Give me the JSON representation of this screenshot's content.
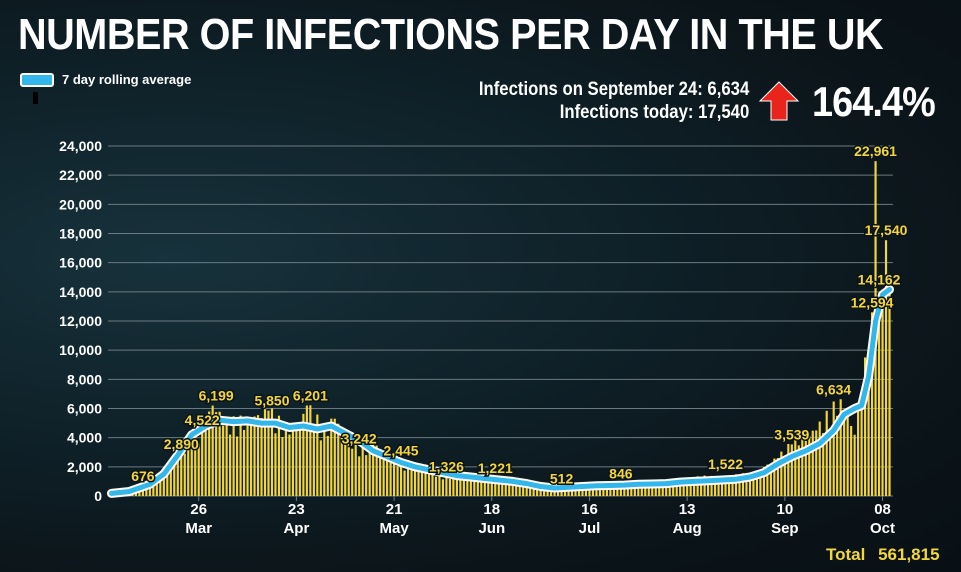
{
  "header": {
    "title": "NUMBER OF INFECTIONS PER DAY IN THE UK",
    "legend_label": "7 day rolling average",
    "infections_sep24": "Infections on September 24: 6,634",
    "infections_today": "Infections today: 17,540",
    "percent_change": "164.4%",
    "total_label": "Total",
    "total_value": "561,815"
  },
  "colors": {
    "bar": "#f2d63b",
    "line": "#33b6ea",
    "line_outline": "#ffffff",
    "arrow": "#e8241c",
    "text": "#ffffff",
    "grid": "#6b7a80"
  },
  "chart_data": {
    "type": "bar",
    "title": "NUMBER OF INFECTIONS PER DAY IN THE UK",
    "xlabel": "",
    "ylabel": "",
    "ylim": [
      0,
      24000
    ],
    "yticks": [
      0,
      2000,
      4000,
      6000,
      8000,
      10000,
      12000,
      14000,
      16000,
      18000,
      20000,
      22000,
      24000
    ],
    "ytick_labels": [
      "0",
      "2,000",
      "4,000",
      "6,000",
      "8,000",
      "10,000",
      "12,000",
      "14,000",
      "16,000",
      "18,000",
      "20,000",
      "22,000",
      "24,000"
    ],
    "x_ticks": [
      {
        "day": 26,
        "day_label": "26",
        "month_label": "Mar"
      },
      {
        "day": 54,
        "day_label": "23",
        "month_label": "Apr"
      },
      {
        "day": 82,
        "day_label": "21",
        "month_label": "May"
      },
      {
        "day": 110,
        "day_label": "18",
        "month_label": "Jun"
      },
      {
        "day": 138,
        "day_label": "16",
        "month_label": "Jul"
      },
      {
        "day": 166,
        "day_label": "13",
        "month_label": "Aug"
      },
      {
        "day": 194,
        "day_label": "10",
        "month_label": "Sep"
      },
      {
        "day": 222,
        "day_label": "08",
        "month_label": "Oct"
      }
    ],
    "x_range_days": [
      0,
      225
    ],
    "daily_anchors": [
      [
        1,
        40
      ],
      [
        5,
        100
      ],
      [
        10,
        676
      ],
      [
        16,
        1500
      ],
      [
        20,
        2890
      ],
      [
        24,
        3800
      ],
      [
        27,
        4522
      ],
      [
        30,
        6199
      ],
      [
        34,
        5000
      ],
      [
        40,
        5200
      ],
      [
        46,
        5850
      ],
      [
        51,
        4600
      ],
      [
        55,
        4800
      ],
      [
        57,
        6201
      ],
      [
        62,
        4500
      ],
      [
        65,
        5300
      ],
      [
        70,
        3242
      ],
      [
        76,
        3500
      ],
      [
        82,
        2445
      ],
      [
        88,
        2000
      ],
      [
        94,
        1326
      ],
      [
        100,
        1500
      ],
      [
        106,
        1100
      ],
      [
        110,
        1221
      ],
      [
        116,
        900
      ],
      [
        124,
        700
      ],
      [
        128,
        512
      ],
      [
        134,
        600
      ],
      [
        140,
        800
      ],
      [
        145,
        846
      ],
      [
        150,
        750
      ],
      [
        160,
        850
      ],
      [
        170,
        1300
      ],
      [
        176,
        1300
      ],
      [
        185,
        1522
      ],
      [
        192,
        2600
      ],
      [
        196,
        3539
      ],
      [
        203,
        4500
      ],
      [
        210,
        6634
      ],
      [
        214,
        4200
      ],
      [
        216,
        7000
      ],
      [
        219,
        12594
      ],
      [
        220,
        22961
      ],
      [
        221,
        13500
      ],
      [
        222,
        14162
      ],
      [
        223,
        17540
      ],
      [
        224,
        15000
      ]
    ],
    "rolling_average": [
      [
        1,
        180
      ],
      [
        6,
        300
      ],
      [
        12,
        800
      ],
      [
        16,
        1500
      ],
      [
        20,
        2800
      ],
      [
        24,
        4200
      ],
      [
        28,
        4800
      ],
      [
        32,
        5200
      ],
      [
        36,
        5100
      ],
      [
        40,
        5150
      ],
      [
        44,
        5000
      ],
      [
        48,
        5000
      ],
      [
        52,
        4700
      ],
      [
        56,
        4800
      ],
      [
        60,
        4600
      ],
      [
        64,
        4800
      ],
      [
        68,
        4300
      ],
      [
        72,
        3800
      ],
      [
        76,
        3100
      ],
      [
        80,
        2700
      ],
      [
        84,
        2300
      ],
      [
        88,
        2000
      ],
      [
        92,
        1800
      ],
      [
        96,
        1600
      ],
      [
        100,
        1400
      ],
      [
        104,
        1300
      ],
      [
        108,
        1200
      ],
      [
        112,
        1100
      ],
      [
        116,
        1000
      ],
      [
        120,
        850
      ],
      [
        124,
        650
      ],
      [
        128,
        550
      ],
      [
        132,
        600
      ],
      [
        136,
        650
      ],
      [
        140,
        700
      ],
      [
        144,
        720
      ],
      [
        148,
        750
      ],
      [
        152,
        800
      ],
      [
        156,
        820
      ],
      [
        160,
        850
      ],
      [
        164,
        950
      ],
      [
        168,
        1000
      ],
      [
        172,
        1050
      ],
      [
        176,
        1100
      ],
      [
        180,
        1150
      ],
      [
        184,
        1300
      ],
      [
        188,
        1600
      ],
      [
        192,
        2200
      ],
      [
        196,
        2700
      ],
      [
        200,
        3100
      ],
      [
        204,
        3600
      ],
      [
        208,
        4500
      ],
      [
        211,
        5600
      ],
      [
        214,
        6000
      ],
      [
        216,
        6200
      ],
      [
        218,
        8200
      ],
      [
        220,
        12000
      ],
      [
        222,
        13800
      ],
      [
        224,
        14162
      ]
    ],
    "annotations": [
      {
        "day": 10,
        "value": 676,
        "label": "676"
      },
      {
        "day": 21,
        "value": 2890,
        "label": "2,890"
      },
      {
        "day": 27,
        "value": 4522,
        "label": "4,522"
      },
      {
        "day": 31,
        "value": 6199,
        "label": "6,199"
      },
      {
        "day": 47,
        "value": 5850,
        "label": "5,850"
      },
      {
        "day": 58,
        "value": 6201,
        "label": "6,201"
      },
      {
        "day": 72,
        "value": 3242,
        "label": "3,242"
      },
      {
        "day": 84,
        "value": 2445,
        "label": "2,445"
      },
      {
        "day": 97,
        "value": 1326,
        "label": "1,326"
      },
      {
        "day": 111,
        "value": 1221,
        "label": "1,221"
      },
      {
        "day": 130,
        "value": 512,
        "label": "512"
      },
      {
        "day": 147,
        "value": 846,
        "label": "846"
      },
      {
        "day": 177,
        "value": 1522,
        "label": "1,522"
      },
      {
        "day": 196,
        "value": 3539,
        "label": "3,539"
      },
      {
        "day": 208,
        "value": 6634,
        "label": "6,634"
      },
      {
        "day": 220,
        "value": 22961,
        "label": "22,961"
      },
      {
        "day": 223,
        "value": 17540,
        "label": "17,540"
      },
      {
        "day": 221,
        "value": 14162,
        "label": "14,162"
      },
      {
        "day": 219,
        "value": 12594,
        "label": "12,594"
      }
    ]
  }
}
